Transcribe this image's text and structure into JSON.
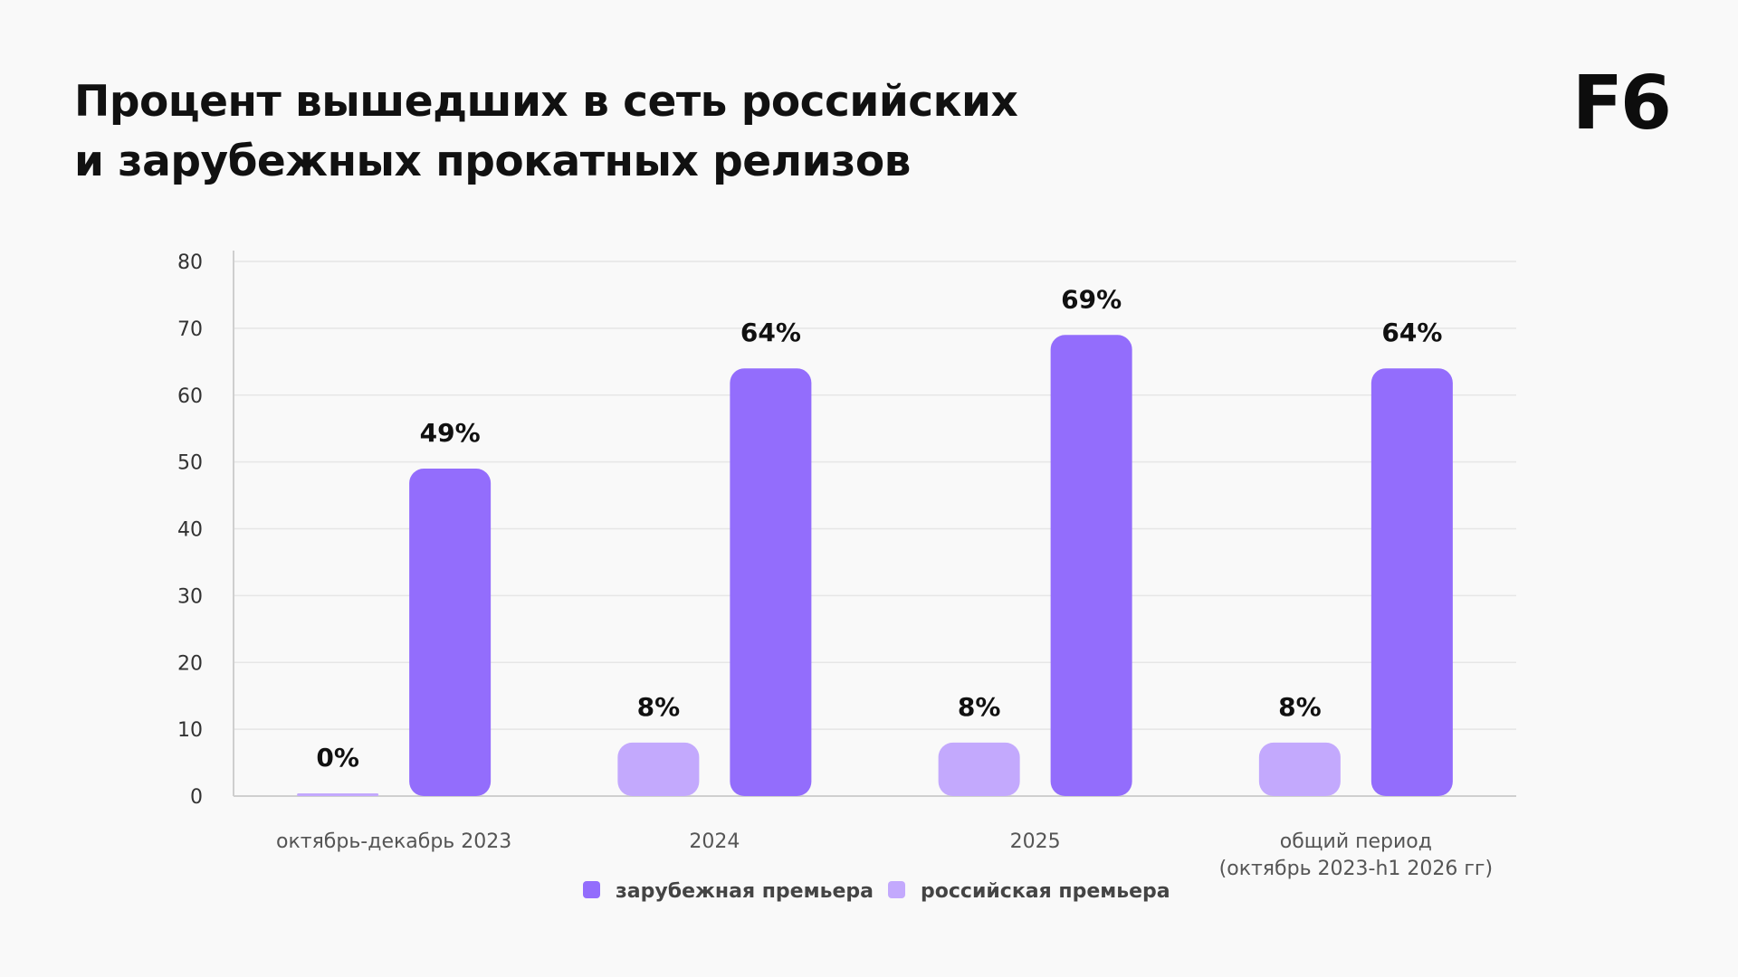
{
  "header": {
    "title_lines": [
      "Процент вышедших в сеть российских",
      "и зарубежных прокатных релизов"
    ],
    "logo": "F6"
  },
  "colors": {
    "foreign": "#936dfc",
    "russian": "#c3a9fd",
    "grid": "#e6e6e6",
    "axis": "#cfcfcf"
  },
  "chart_data": {
    "type": "bar",
    "title": "Процент вышедших в сеть российских и зарубежных прокатных релизов",
    "categories": [
      [
        "октябрь-декабрь 2023"
      ],
      [
        "2024"
      ],
      [
        "2025"
      ],
      [
        "общий период",
        "(октябрь 2023-h1 2026 гг)"
      ]
    ],
    "series": [
      {
        "name": "российская премьера",
        "color": "#c3a9fd",
        "values": [
          0,
          8,
          8,
          8
        ],
        "labels": [
          "0%",
          "8%",
          "8%",
          "8%"
        ]
      },
      {
        "name": "зарубежная премьера",
        "color": "#936dfc",
        "values": [
          49,
          64,
          69,
          64
        ],
        "labels": [
          "49%",
          "64%",
          "69%",
          "64%"
        ]
      }
    ],
    "legend_order": [
      "зарубежная премьера",
      "российская премьера"
    ],
    "y_ticks": [
      0,
      10,
      20,
      30,
      40,
      50,
      60,
      70,
      80
    ],
    "ylim": [
      0,
      80
    ],
    "grid": true,
    "legend_position": "bottom-center"
  }
}
